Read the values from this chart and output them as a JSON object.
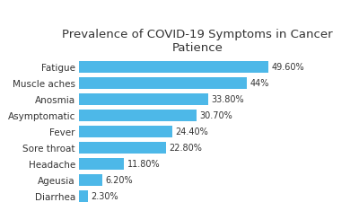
{
  "title": "Prevalence of COVID-19 Symptoms in Cancer\nPatience",
  "categories": [
    "Fatigue",
    "Muscle aches",
    "Anosmia",
    "Asymptomatic",
    "Fever",
    "Sore throat",
    "Headache",
    "Ageusia",
    "Diarrhea"
  ],
  "values": [
    49.6,
    44.0,
    33.8,
    30.7,
    24.4,
    22.8,
    11.8,
    6.2,
    2.3
  ],
  "labels": [
    "49.60%",
    "44%",
    "33.80%",
    "30.70%",
    "24.40%",
    "22.80%",
    "11.80%",
    "6.20%",
    "2.30%"
  ],
  "bar_color": "#4db8e8",
  "background_color": "#ffffff",
  "title_fontsize": 9.5,
  "label_fontsize": 7,
  "tick_fontsize": 7.5,
  "xlim": [
    0,
    62
  ]
}
